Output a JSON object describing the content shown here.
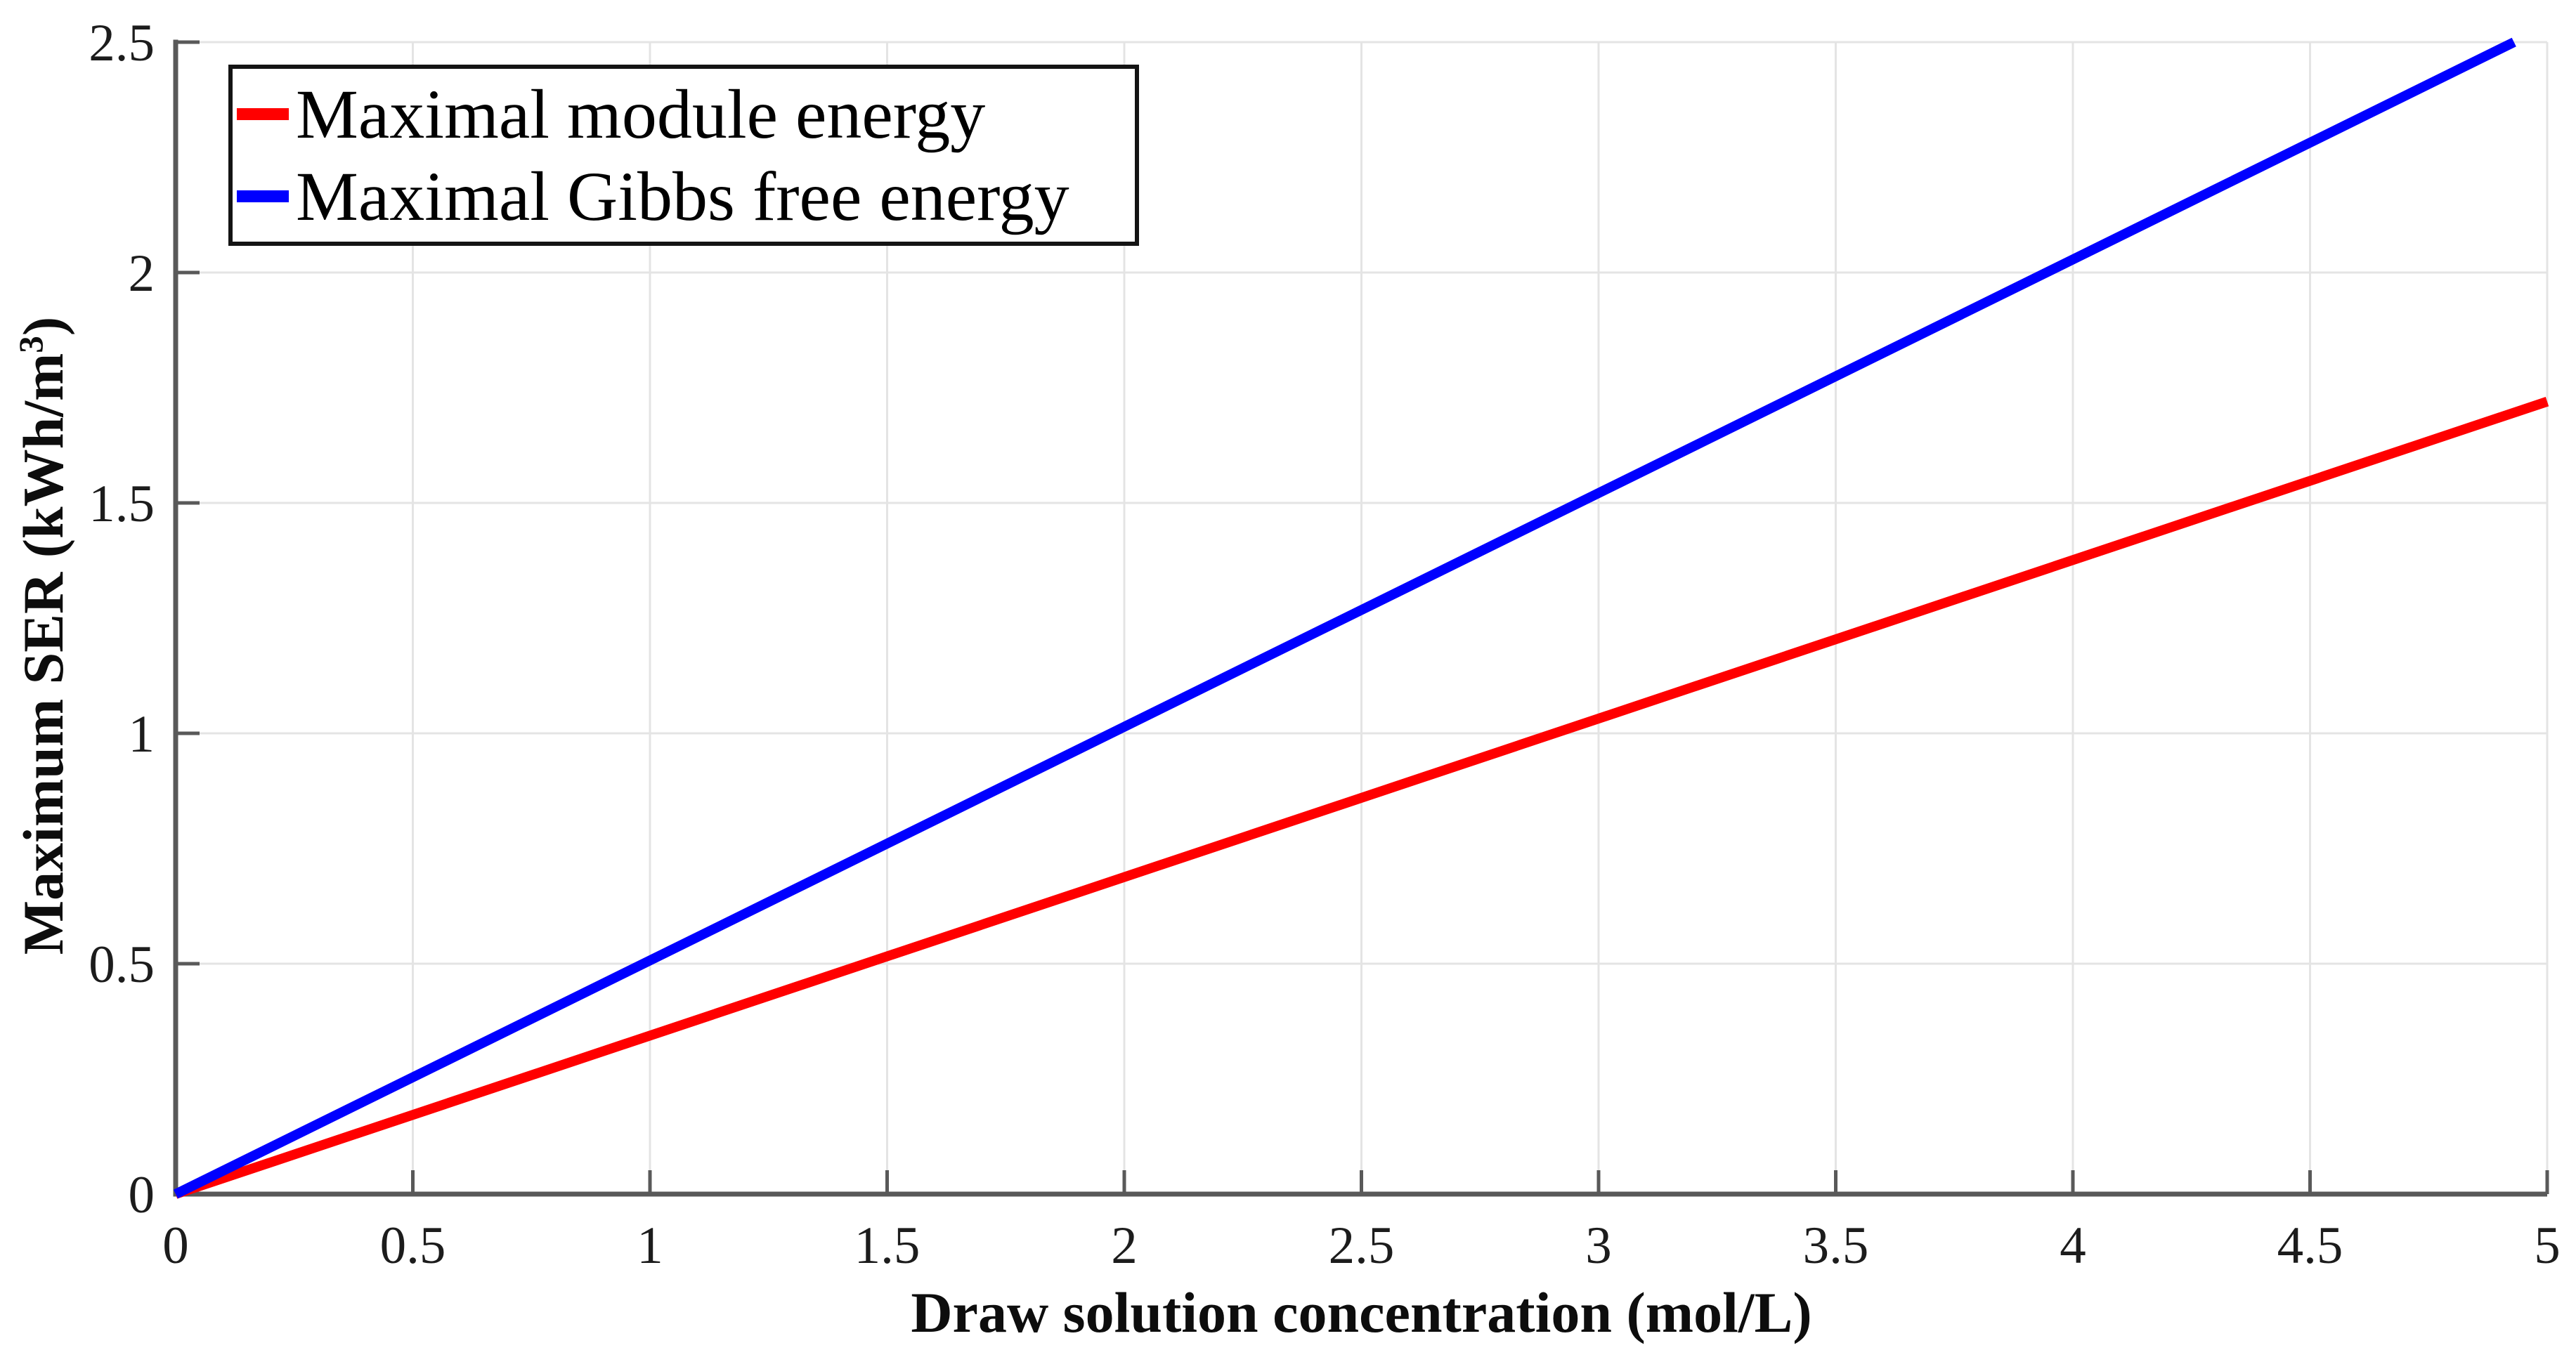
{
  "chart_data": {
    "type": "line",
    "title": "",
    "xlabel": "Draw solution concentration (mol/L)",
    "ylabel": "Maximum SER (kWh/m³)",
    "ylabel_parts": {
      "pre": "Maximum SER (kWh/m",
      "sup": "3",
      "post": ")"
    },
    "xlim": [
      0,
      5
    ],
    "ylim": [
      0,
      2.5
    ],
    "xticks": {
      "values": [
        0,
        0.5,
        1,
        1.5,
        2,
        2.5,
        3,
        3.5,
        4,
        4.5,
        5
      ],
      "labels": [
        "0",
        "0.5",
        "1",
        "1.5",
        "2",
        "2.5",
        "3",
        "3.5",
        "4",
        "4.5",
        "5"
      ]
    },
    "yticks": {
      "values": [
        0,
        0.5,
        1,
        1.5,
        2,
        2.5
      ],
      "labels": [
        "0",
        "0.5",
        "1",
        "1.5",
        "2",
        "2.5"
      ]
    },
    "grid": true,
    "legend": {
      "position": "top-left",
      "border": true
    },
    "series": [
      {
        "name": "Maximal module energy",
        "color": "#FF0000",
        "x": [
          0,
          5
        ],
        "y": [
          0,
          1.72
        ]
      },
      {
        "name": "Maximal Gibbs free energy",
        "color": "#0000FF",
        "x": [
          0,
          4.93
        ],
        "y": [
          0,
          2.5
        ]
      }
    ],
    "colors": {
      "axis": "#595959",
      "grid": "#e4e4e4",
      "tick_text": "#1c1c1c",
      "background": "#ffffff"
    }
  }
}
